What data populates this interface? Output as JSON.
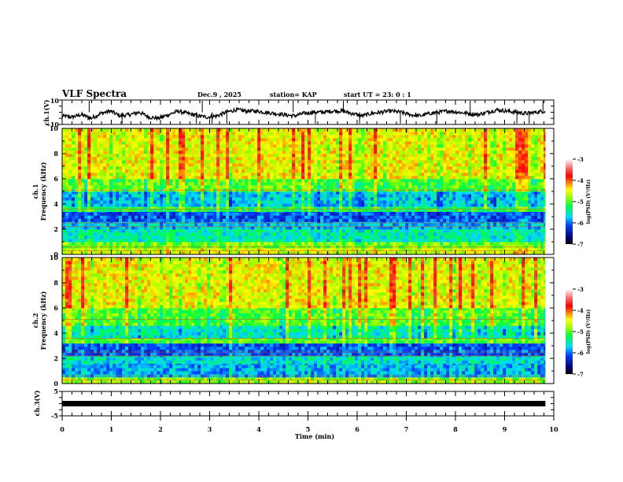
{
  "header": {
    "title": "VLF Spectra",
    "date": "Dec.9  , 2025",
    "station": "station= KAP",
    "start": "start  UT  =   23: 0  : 1"
  },
  "chart_data": [
    {
      "type": "line",
      "name": "ch1-waveform",
      "ylabel": "ch.1(V)",
      "ylim": [
        -10,
        10
      ],
      "y_ticks": [
        "10",
        "-10"
      ],
      "xlim": [
        0,
        10
      ],
      "x_end": 9.83,
      "baseline": [
        -3,
        -4,
        -2,
        -5,
        -1,
        1,
        -3,
        -2,
        0,
        -4,
        -5,
        -2,
        1,
        -1,
        -3,
        -4,
        -3,
        0,
        2,
        1,
        1,
        0,
        -1,
        -2,
        -3,
        -1,
        0,
        0,
        1,
        1,
        -1,
        -3,
        -1,
        0,
        1,
        0,
        -2,
        -3,
        -1,
        0,
        1,
        0,
        -1,
        -2,
        0,
        2,
        1,
        0,
        -1,
        0,
        1
      ]
    },
    {
      "type": "heatmap",
      "name": "ch1-spectrogram",
      "ylabel": "ch.1\nFrequency  (kHz)",
      "ylabel_lines": [
        "ch.1",
        "Frequency  (kHz)"
      ],
      "ylim": [
        0,
        10
      ],
      "y_ticks": [
        "0",
        "2",
        "4",
        "6",
        "8",
        "10"
      ],
      "xlim": [
        0,
        10
      ],
      "colorbar": {
        "label": "log(PSD) (V²/Hz)",
        "range": [
          -7,
          -3
        ],
        "ticks": [
          "-3",
          "-4",
          "-5",
          "-6",
          "-7"
        ]
      },
      "bands_khz_level": [
        {
          "from": 0,
          "to": 0.5,
          "level": -4.6
        },
        {
          "from": 0.5,
          "to": 1.0,
          "level": -4.9
        },
        {
          "from": 1.0,
          "to": 2.0,
          "level": -5.5
        },
        {
          "from": 2.0,
          "to": 2.6,
          "level": -5.8
        },
        {
          "from": 2.6,
          "to": 3.4,
          "level": -6.1
        },
        {
          "from": 3.4,
          "to": 3.8,
          "level": -5.2
        },
        {
          "from": 3.8,
          "to": 5.0,
          "level": -5.7
        },
        {
          "from": 5.0,
          "to": 6.0,
          "level": -5.0
        },
        {
          "from": 6.0,
          "to": 10.0,
          "level": -4.5
        }
      ]
    },
    {
      "type": "heatmap",
      "name": "ch2-spectrogram",
      "ylabel_lines": [
        "ch.2",
        "Frequency  (kHz)"
      ],
      "ylim": [
        0,
        10
      ],
      "y_ticks": [
        "0",
        "2",
        "4",
        "6",
        "8",
        "10"
      ],
      "xlim": [
        0,
        10
      ],
      "colorbar": {
        "label": "log(PSD) (V²/Hz)",
        "range": [
          -7,
          -3
        ],
        "ticks": [
          "-3",
          "-4",
          "-5",
          "-6",
          "-7"
        ]
      },
      "bands_khz_level": [
        {
          "from": 0,
          "to": 0.5,
          "level": -4.8
        },
        {
          "from": 0.5,
          "to": 1.6,
          "level": -5.8
        },
        {
          "from": 1.6,
          "to": 2.2,
          "level": -5.6
        },
        {
          "from": 2.2,
          "to": 3.2,
          "level": -6.1
        },
        {
          "from": 3.2,
          "to": 3.6,
          "level": -5.0
        },
        {
          "from": 3.6,
          "to": 4.6,
          "level": -5.5
        },
        {
          "from": 4.6,
          "to": 6.0,
          "level": -5.0
        },
        {
          "from": 6.0,
          "to": 10.0,
          "level": -4.5
        }
      ]
    },
    {
      "type": "line",
      "name": "ch3-waveform",
      "ylabel": "ch.3(V)",
      "ylim": [
        -5,
        5
      ],
      "y_ticks": [
        "5",
        "-5"
      ],
      "xlim": [
        0,
        10
      ],
      "x_end": 9.83,
      "value": 0,
      "xlabel": "Time  (min)",
      "x_ticks": [
        "0",
        "1",
        "2",
        "3",
        "4",
        "5",
        "6",
        "7",
        "8",
        "9",
        "10"
      ]
    }
  ]
}
